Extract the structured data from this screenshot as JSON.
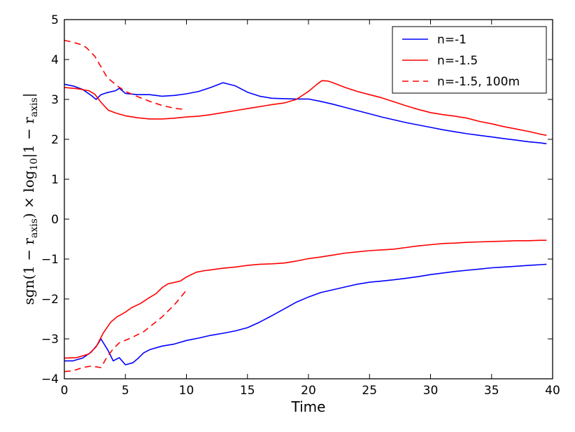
{
  "chart_data": {
    "type": "line",
    "title": "",
    "xlabel": "Time",
    "ylabel": {
      "pre": "sgn(1 − r",
      "sub1": "axis",
      "mid": ") × log",
      "sub2": "10",
      "post": "|1 − r",
      "sub3": "axis",
      "end": "|"
    },
    "xlim": [
      0,
      40
    ],
    "ylim": [
      -4,
      5
    ],
    "xticks": [
      "0",
      "5",
      "10",
      "15",
      "20",
      "25",
      "30",
      "35",
      "40"
    ],
    "yticks": [
      "−4",
      "−3",
      "−2",
      "−1",
      "0",
      "1",
      "2",
      "3",
      "4",
      "5"
    ],
    "grid": false,
    "legend_position": "top-right",
    "series": [
      {
        "name": "n=-1",
        "color": "#0000ff",
        "dash": "solid",
        "segments": [
          [
            [
              0,
              3.38
            ],
            [
              0.8,
              3.33
            ],
            [
              1.5,
              3.25
            ],
            [
              2.2,
              3.1
            ],
            [
              2.6,
              3.0
            ],
            [
              3.0,
              3.12
            ],
            [
              3.5,
              3.17
            ],
            [
              4.2,
              3.22
            ],
            [
              4.5,
              3.28
            ],
            [
              5,
              3.15
            ],
            [
              6,
              3.12
            ],
            [
              7,
              3.12
            ],
            [
              8,
              3.08
            ],
            [
              9,
              3.1
            ],
            [
              10,
              3.14
            ],
            [
              11,
              3.2
            ],
            [
              12,
              3.3
            ],
            [
              13,
              3.42
            ],
            [
              14,
              3.34
            ],
            [
              15,
              3.18
            ],
            [
              16,
              3.08
            ],
            [
              17,
              3.03
            ],
            [
              18,
              3.02
            ],
            [
              19,
              3.01
            ],
            [
              20,
              3.01
            ],
            [
              21,
              2.95
            ],
            [
              22,
              2.88
            ],
            [
              23,
              2.8
            ],
            [
              24,
              2.72
            ],
            [
              25,
              2.64
            ],
            [
              26,
              2.56
            ],
            [
              27,
              2.49
            ],
            [
              28,
              2.42
            ],
            [
              29,
              2.36
            ],
            [
              30,
              2.3
            ],
            [
              31,
              2.24
            ],
            [
              32,
              2.19
            ],
            [
              33,
              2.14
            ],
            [
              34,
              2.1
            ],
            [
              35,
              2.06
            ],
            [
              36,
              2.02
            ],
            [
              37,
              1.98
            ],
            [
              38,
              1.94
            ],
            [
              39,
              1.91
            ],
            [
              39.5,
              1.89
            ]
          ],
          [
            [
              0,
              -3.55
            ],
            [
              0.7,
              -3.55
            ],
            [
              1.5,
              -3.48
            ],
            [
              2.2,
              -3.33
            ],
            [
              2.7,
              -3.15
            ],
            [
              3.0,
              -3.0
            ],
            [
              3.6,
              -3.3
            ],
            [
              4.0,
              -3.55
            ],
            [
              4.5,
              -3.47
            ],
            [
              5,
              -3.65
            ],
            [
              5.6,
              -3.6
            ],
            [
              6,
              -3.5
            ],
            [
              6.5,
              -3.35
            ],
            [
              7,
              -3.27
            ],
            [
              8,
              -3.18
            ],
            [
              9,
              -3.13
            ],
            [
              10,
              -3.04
            ],
            [
              11,
              -2.98
            ],
            [
              12,
              -2.91
            ],
            [
              13,
              -2.86
            ],
            [
              14,
              -2.8
            ],
            [
              15,
              -2.72
            ],
            [
              16,
              -2.58
            ],
            [
              17,
              -2.42
            ],
            [
              18,
              -2.25
            ],
            [
              19,
              -2.08
            ],
            [
              20,
              -1.95
            ],
            [
              21,
              -1.84
            ],
            [
              22,
              -1.77
            ],
            [
              23,
              -1.7
            ],
            [
              24,
              -1.63
            ],
            [
              25,
              -1.58
            ],
            [
              26,
              -1.55
            ],
            [
              27,
              -1.52
            ],
            [
              28,
              -1.48
            ],
            [
              29,
              -1.44
            ],
            [
              30,
              -1.39
            ],
            [
              31,
              -1.35
            ],
            [
              32,
              -1.31
            ],
            [
              33,
              -1.28
            ],
            [
              34,
              -1.25
            ],
            [
              35,
              -1.22
            ],
            [
              36,
              -1.2
            ],
            [
              37,
              -1.18
            ],
            [
              38,
              -1.16
            ],
            [
              39,
              -1.14
            ],
            [
              39.5,
              -1.13
            ]
          ]
        ]
      },
      {
        "name": "n=-1.5",
        "color": "#ff0000",
        "dash": "solid",
        "segments": [
          [
            [
              0,
              3.3
            ],
            [
              1,
              3.27
            ],
            [
              2,
              3.22
            ],
            [
              2.5,
              3.13
            ],
            [
              3,
              2.93
            ],
            [
              3.6,
              2.73
            ],
            [
              4.2,
              2.66
            ],
            [
              5,
              2.59
            ],
            [
              6,
              2.54
            ],
            [
              7,
              2.51
            ],
            [
              8,
              2.51
            ],
            [
              9,
              2.53
            ],
            [
              10,
              2.56
            ],
            [
              11,
              2.58
            ],
            [
              12,
              2.62
            ],
            [
              13,
              2.67
            ],
            [
              14,
              2.72
            ],
            [
              15,
              2.77
            ],
            [
              16,
              2.82
            ],
            [
              17,
              2.87
            ],
            [
              18,
              2.91
            ],
            [
              19,
              3.0
            ],
            [
              20,
              3.2
            ],
            [
              20.7,
              3.38
            ],
            [
              21.1,
              3.47
            ],
            [
              21.6,
              3.46
            ],
            [
              22,
              3.42
            ],
            [
              23,
              3.3
            ],
            [
              24,
              3.2
            ],
            [
              25,
              3.12
            ],
            [
              26,
              3.04
            ],
            [
              27,
              2.94
            ],
            [
              28,
              2.84
            ],
            [
              29,
              2.75
            ],
            [
              30,
              2.67
            ],
            [
              31,
              2.62
            ],
            [
              32,
              2.58
            ],
            [
              33,
              2.53
            ],
            [
              34,
              2.45
            ],
            [
              35,
              2.39
            ],
            [
              36,
              2.32
            ],
            [
              37,
              2.26
            ],
            [
              38,
              2.2
            ],
            [
              39,
              2.13
            ],
            [
              39.5,
              2.1
            ]
          ],
          [
            [
              0,
              -3.48
            ],
            [
              1,
              -3.47
            ],
            [
              2,
              -3.38
            ],
            [
              2.6,
              -3.2
            ],
            [
              3.2,
              -2.85
            ],
            [
              3.8,
              -2.58
            ],
            [
              4.3,
              -2.45
            ],
            [
              5,
              -2.33
            ],
            [
              5.5,
              -2.22
            ],
            [
              6.2,
              -2.12
            ],
            [
              7,
              -1.96
            ],
            [
              7.5,
              -1.87
            ],
            [
              8,
              -1.72
            ],
            [
              8.5,
              -1.62
            ],
            [
              9.5,
              -1.55
            ],
            [
              10,
              -1.45
            ],
            [
              10.8,
              -1.33
            ],
            [
              11.5,
              -1.29
            ],
            [
              12,
              -1.27
            ],
            [
              13,
              -1.23
            ],
            [
              14,
              -1.2
            ],
            [
              15,
              -1.16
            ],
            [
              16,
              -1.13
            ],
            [
              17,
              -1.12
            ],
            [
              18,
              -1.1
            ],
            [
              19,
              -1.05
            ],
            [
              20,
              -0.99
            ],
            [
              21,
              -0.95
            ],
            [
              22,
              -0.9
            ],
            [
              23,
              -0.85
            ],
            [
              24,
              -0.82
            ],
            [
              25,
              -0.79
            ],
            [
              26,
              -0.77
            ],
            [
              27,
              -0.75
            ],
            [
              28,
              -0.71
            ],
            [
              29,
              -0.67
            ],
            [
              30,
              -0.64
            ],
            [
              31,
              -0.61
            ],
            [
              32,
              -0.6
            ],
            [
              33,
              -0.58
            ],
            [
              34,
              -0.57
            ],
            [
              35,
              -0.56
            ],
            [
              36,
              -0.55
            ],
            [
              37,
              -0.54
            ],
            [
              38,
              -0.54
            ],
            [
              39,
              -0.53
            ],
            [
              39.5,
              -0.53
            ]
          ]
        ]
      },
      {
        "name": "n=-1.5, 100m",
        "color": "#ff0000",
        "dash": "dashed",
        "segments": [
          [
            [
              0,
              4.48
            ],
            [
              0.6,
              4.44
            ],
            [
              1.3,
              4.38
            ],
            [
              1.8,
              4.3
            ],
            [
              2.5,
              4.08
            ],
            [
              3.0,
              3.82
            ],
            [
              3.5,
              3.55
            ],
            [
              4.3,
              3.35
            ],
            [
              5,
              3.2
            ],
            [
              6,
              3.07
            ],
            [
              7,
              2.95
            ],
            [
              8,
              2.85
            ],
            [
              9,
              2.78
            ],
            [
              10,
              2.74
            ]
          ],
          [
            [
              0,
              -3.82
            ],
            [
              0.7,
              -3.8
            ],
            [
              1.5,
              -3.72
            ],
            [
              2.2,
              -3.68
            ],
            [
              3.0,
              -3.72
            ],
            [
              3.5,
              -3.45
            ],
            [
              4.0,
              -3.25
            ],
            [
              4.5,
              -3.1
            ],
            [
              5.5,
              -2.97
            ],
            [
              6.5,
              -2.82
            ],
            [
              7.2,
              -2.65
            ],
            [
              8,
              -2.45
            ],
            [
              9,
              -2.15
            ],
            [
              10,
              -1.78
            ]
          ]
        ]
      }
    ]
  }
}
